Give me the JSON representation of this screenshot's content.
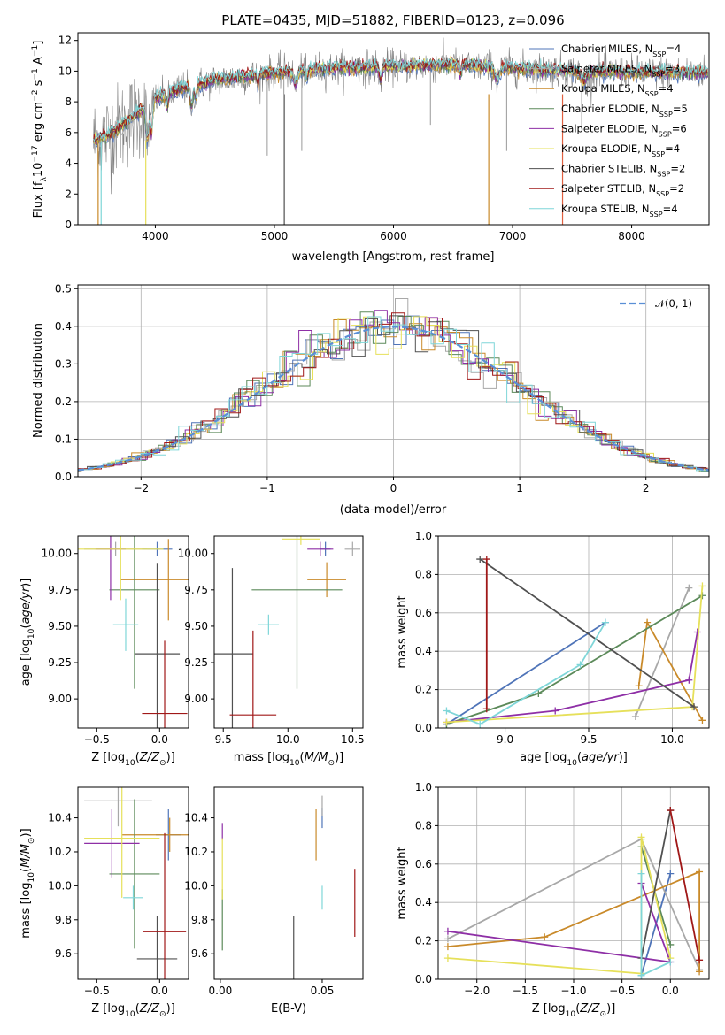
{
  "title": "PLATE=0435, MJD=51882, FIBERID=0123, z=0.096",
  "colors": {
    "Chabrier MILES": "#4f74b8",
    "Salpeter MILES": "#a8a8a8",
    "Kroupa MILES": "#c98a2a",
    "Chabrier ELODIE": "#5c8a5a",
    "Salpeter ELODIE": "#8e2fa6",
    "Kroupa ELODIE": "#e6e05a",
    "Chabrier STELIB": "#505050",
    "Salpeter STELIB": "#a01818",
    "Kroupa STELIB": "#7fd6d8"
  },
  "legend_spectrum": [
    {
      "label": "Chabrier MILES, N",
      "sub": "SSP",
      "tail": "=4",
      "color": "#4f74b8"
    },
    {
      "label": "Salpeter MILES, N",
      "sub": "SSP",
      "tail": "=3",
      "color": "#a8a8a8"
    },
    {
      "label": "Kroupa MILES, N",
      "sub": "SSP",
      "tail": "=4",
      "color": "#c98a2a"
    },
    {
      "label": "Chabrier ELODIE, N",
      "sub": "SSP",
      "tail": "=5",
      "color": "#5c8a5a"
    },
    {
      "label": "Salpeter ELODIE, N",
      "sub": "SSP",
      "tail": "=6",
      "color": "#8e2fa6"
    },
    {
      "label": "Kroupa ELODIE, N",
      "sub": "SSP",
      "tail": "=4",
      "color": "#e6e05a"
    },
    {
      "label": "Chabrier STELIB, N",
      "sub": "SSP",
      "tail": "=2",
      "color": "#505050"
    },
    {
      "label": "Salpeter STELIB, N",
      "sub": "SSP",
      "tail": "=2",
      "color": "#a01818"
    },
    {
      "label": "Kroupa STELIB, N",
      "sub": "SSP",
      "tail": "=4",
      "color": "#7fd6d8"
    }
  ],
  "chart_data": [
    {
      "id": "spectrum",
      "type": "line",
      "xlabel": "wavelength [Angstrom, rest frame]",
      "ylabel": "Flux [f_λ10^-17 erg cm^-2 s^-1 A^-1]",
      "xlim": [
        3350,
        8650
      ],
      "ylim": [
        0,
        12.5
      ],
      "xticks": [
        4000,
        5000,
        6000,
        7000,
        8000
      ],
      "yticks": [
        0,
        2,
        4,
        6,
        8,
        10,
        12
      ],
      "data_shape": {
        "wavelength": [
          3500,
          3600,
          3700,
          3800,
          3900,
          4000,
          4200,
          4500,
          5000,
          5500,
          6000,
          6500,
          7000,
          7500,
          8000,
          8500
        ],
        "flux": [
          5.5,
          5.8,
          6.3,
          6.9,
          7.5,
          8.2,
          8.8,
          9.4,
          9.9,
          10.2,
          10.3,
          10.4,
          10.2,
          10.0,
          9.9,
          9.9
        ]
      },
      "grid": false
    },
    {
      "id": "residuals",
      "type": "line",
      "xlabel": "(data-model)/error",
      "ylabel": "Normed distribution",
      "xlim": [
        -2.5,
        2.5
      ],
      "ylim": [
        0,
        0.51
      ],
      "xticks": [
        -2,
        -1,
        0,
        1,
        2
      ],
      "yticks": [
        0.0,
        0.1,
        0.2,
        0.3,
        0.4,
        0.5
      ],
      "series_name": "𝒩(0, 1)",
      "grid": true,
      "legend": "top-right"
    },
    {
      "id": "age_vs_Z",
      "type": "scatter",
      "xlabel": "Z [log10(Z/Z⊙)]",
      "ylabel": "age  [log10(age/yr)]",
      "xlim": [
        -0.65,
        0.23
      ],
      "ylim": [
        8.8,
        10.12
      ],
      "xticks": [
        -0.5,
        0.0
      ],
      "yticks": [
        9.0,
        9.25,
        9.5,
        9.75,
        10.0
      ],
      "points": [
        {
          "model": "Chabrier MILES",
          "x": -0.02,
          "y": 10.03,
          "xerr": 0.12,
          "yerr": 0.05
        },
        {
          "model": "Salpeter MILES",
          "x": -0.35,
          "y": 10.03,
          "xerr": 0.25,
          "yerr": 0.05
        },
        {
          "model": "Kroupa MILES",
          "x": 0.07,
          "y": 9.82,
          "xerr": 0.38,
          "yerr": 0.28
        },
        {
          "model": "Chabrier ELODIE",
          "x": -0.2,
          "y": 9.75,
          "xerr": 0.2,
          "yerr": 0.68
        },
        {
          "model": "Salpeter ELODIE",
          "x": -0.39,
          "y": 10.03,
          "xerr": 0.12,
          "yerr": 0.35
        },
        {
          "model": "Kroupa ELODIE",
          "x": -0.31,
          "y": 10.03,
          "xerr": 0.34,
          "yerr": 0.35
        },
        {
          "model": "Chabrier STELIB",
          "x": -0.02,
          "y": 9.31,
          "xerr": 0.18,
          "yerr": 0.62
        },
        {
          "model": "Salpeter STELIB",
          "x": 0.04,
          "y": 8.9,
          "xerr": 0.18,
          "yerr": 0.5
        },
        {
          "model": "Kroupa STELIB",
          "x": -0.27,
          "y": 9.51,
          "xerr": 0.1,
          "yerr": 0.18
        }
      ]
    },
    {
      "id": "age_vs_mass",
      "type": "scatter",
      "xlabel": "mass [log10(M/M⊙)]",
      "ylabel": "",
      "xlim": [
        9.43,
        10.58
      ],
      "ylim": [
        8.8,
        10.12
      ],
      "xticks": [
        9.5,
        10.0,
        10.5
      ],
      "yticks": [
        9.0,
        9.25,
        9.5,
        9.75,
        10.0
      ],
      "points": [
        {
          "model": "Chabrier MILES",
          "x": 10.29,
          "y": 10.03,
          "xerr": 0.04,
          "yerr": 0.05
        },
        {
          "model": "Salpeter MILES",
          "x": 10.5,
          "y": 10.03,
          "xerr": 0.06,
          "yerr": 0.05
        },
        {
          "model": "Kroupa MILES",
          "x": 10.3,
          "y": 9.82,
          "xerr": 0.15,
          "yerr": 0.12
        },
        {
          "model": "Chabrier ELODIE",
          "x": 10.07,
          "y": 9.75,
          "xerr": 0.35,
          "yerr": 0.68
        },
        {
          "model": "Salpeter ELODIE",
          "x": 10.25,
          "y": 10.03,
          "xerr": 0.1,
          "yerr": 0.05
        },
        {
          "model": "Kroupa ELODIE",
          "x": 10.1,
          "y": 10.1,
          "xerr": 0.15,
          "yerr": 0.04
        },
        {
          "model": "Chabrier STELIB",
          "x": 9.57,
          "y": 9.31,
          "xerr": 0.16,
          "yerr": 0.59
        },
        {
          "model": "Salpeter STELIB",
          "x": 9.73,
          "y": 8.89,
          "xerr": 0.18,
          "yerr": 0.58
        },
        {
          "model": "Kroupa STELIB",
          "x": 9.85,
          "y": 9.51,
          "xerr": 0.08,
          "yerr": 0.07
        }
      ]
    },
    {
      "id": "weight_vs_age",
      "type": "line",
      "xlabel": "age  [log10(age/yr)]",
      "ylabel": "mass weight",
      "xlim": [
        8.6,
        10.22
      ],
      "ylim": [
        0,
        1
      ],
      "xticks": [
        9.0,
        9.5,
        10.0
      ],
      "yticks": [
        0.0,
        0.2,
        0.4,
        0.6,
        0.8,
        1.0
      ],
      "grid": true,
      "series": [
        {
          "model": "Chabrier MILES",
          "x": [
            8.65,
            9.6
          ],
          "y": [
            0.02,
            0.55
          ]
        },
        {
          "model": "Salpeter MILES",
          "x": [
            9.78,
            10.1
          ],
          "y": [
            0.06,
            0.73
          ]
        },
        {
          "model": "Kroupa MILES",
          "x": [
            9.8,
            9.85,
            10.18
          ],
          "y": [
            0.22,
            0.55,
            0.04
          ]
        },
        {
          "model": "Chabrier ELODIE",
          "x": [
            8.65,
            9.2,
            10.18
          ],
          "y": [
            0.02,
            0.18,
            0.69
          ]
        },
        {
          "model": "Salpeter ELODIE",
          "x": [
            8.65,
            9.3,
            10.1,
            10.15
          ],
          "y": [
            0.03,
            0.09,
            0.25,
            0.5
          ]
        },
        {
          "model": "Kroupa ELODIE",
          "x": [
            8.65,
            10.12,
            10.18
          ],
          "y": [
            0.03,
            0.11,
            0.74
          ]
        },
        {
          "model": "Chabrier STELIB",
          "x": [
            8.85,
            10.13
          ],
          "y": [
            0.88,
            0.11
          ]
        },
        {
          "model": "Salpeter STELIB",
          "x": [
            8.89,
            8.89
          ],
          "y": [
            0.88,
            0.1
          ]
        },
        {
          "model": "Kroupa STELIB",
          "x": [
            8.65,
            8.85,
            9.45,
            9.6
          ],
          "y": [
            0.09,
            0.02,
            0.33,
            0.55
          ]
        }
      ]
    },
    {
      "id": "mass_vs_Z",
      "type": "scatter",
      "xlabel": "Z [log10(Z/Z⊙)]",
      "ylabel": "mass [log10(M/M⊙)]",
      "xlim": [
        -0.65,
        0.23
      ],
      "ylim": [
        9.45,
        10.58
      ],
      "xticks": [
        -0.5,
        0.0
      ],
      "yticks": [
        9.6,
        9.8,
        10.0,
        10.2,
        10.4
      ],
      "points": [
        {
          "model": "Chabrier MILES",
          "x": 0.07,
          "y": 10.3,
          "xerr": 0.1,
          "yerr": 0.15
        },
        {
          "model": "Salpeter MILES",
          "x": -0.33,
          "y": 10.5,
          "xerr": 0.27,
          "yerr": 0.15
        },
        {
          "model": "Kroupa MILES",
          "x": 0.08,
          "y": 10.3,
          "xerr": 0.38,
          "yerr": 0.1
        },
        {
          "model": "Chabrier ELODIE",
          "x": -0.2,
          "y": 10.07,
          "xerr": 0.2,
          "yerr": 0.44
        },
        {
          "model": "Salpeter ELODIE",
          "x": -0.38,
          "y": 10.25,
          "xerr": 0.22,
          "yerr": 0.2
        },
        {
          "model": "Kroupa ELODIE",
          "x": -0.3,
          "y": 10.28,
          "xerr": 0.3,
          "yerr": 0.35
        },
        {
          "model": "Chabrier STELIB",
          "x": -0.02,
          "y": 9.57,
          "xerr": 0.16,
          "yerr": 0.25
        },
        {
          "model": "Salpeter STELIB",
          "x": 0.04,
          "y": 9.73,
          "xerr": 0.17,
          "yerr": 0.58
        },
        {
          "model": "Kroupa STELIB",
          "x": -0.21,
          "y": 9.93,
          "xerr": 0.08,
          "yerr": 0.07
        }
      ]
    },
    {
      "id": "mass_vs_EBV",
      "type": "scatter",
      "xlabel": "E(B-V)",
      "ylabel": "",
      "xlim": [
        -0.003,
        0.07
      ],
      "ylim": [
        9.45,
        10.58
      ],
      "xticks": [
        0.0,
        0.05
      ],
      "yticks": [
        9.6,
        9.8,
        10.0,
        10.2,
        10.4
      ],
      "points": [
        {
          "model": "Chabrier MILES",
          "x": 0.05,
          "y": 10.4,
          "yerr": 0.06
        },
        {
          "model": "Salpeter MILES",
          "x": 0.05,
          "y": 10.47,
          "yerr": 0.06
        },
        {
          "model": "Kroupa MILES",
          "x": 0.047,
          "y": 10.3,
          "yerr": 0.15
        },
        {
          "model": "Chabrier ELODIE",
          "x": 0.001,
          "y": 9.8,
          "yerr": 0.18
        },
        {
          "model": "Salpeter ELODIE",
          "x": 0.001,
          "y": 10.32,
          "yerr": 0.05
        },
        {
          "model": "Kroupa ELODIE",
          "x": 0.001,
          "y": 10.1,
          "yerr": 0.18
        },
        {
          "model": "Chabrier STELIB",
          "x": 0.036,
          "y": 9.57,
          "yerr": 0.25
        },
        {
          "model": "Salpeter STELIB",
          "x": 0.066,
          "y": 9.9,
          "yerr": 0.2
        },
        {
          "model": "Kroupa STELIB",
          "x": 0.05,
          "y": 9.93,
          "yerr": 0.07
        }
      ]
    },
    {
      "id": "weight_vs_Z",
      "type": "line",
      "xlabel": "Z [log10(Z/Z⊙)]",
      "ylabel": "mass weight",
      "xlim": [
        -2.4,
        0.4
      ],
      "ylim": [
        0,
        1
      ],
      "xticks": [
        -2.0,
        -1.5,
        -1.0,
        -0.5,
        0.0
      ],
      "yticks": [
        0.0,
        0.2,
        0.4,
        0.6,
        0.8,
        1.0
      ],
      "grid": true,
      "series": [
        {
          "model": "Chabrier MILES",
          "x": [
            -0.3,
            0.0
          ],
          "y": [
            0.02,
            0.55
          ]
        },
        {
          "model": "Salpeter MILES",
          "x": [
            -2.3,
            -0.3,
            0.3
          ],
          "y": [
            0.21,
            0.73,
            0.05
          ]
        },
        {
          "model": "Kroupa MILES",
          "x": [
            -2.3,
            -1.3,
            0.3,
            0.3
          ],
          "y": [
            0.17,
            0.22,
            0.56,
            0.04
          ]
        },
        {
          "model": "Chabrier ELODIE",
          "x": [
            -0.3,
            0.0
          ],
          "y": [
            0.69,
            0.18
          ]
        },
        {
          "model": "Salpeter ELODIE",
          "x": [
            -2.3,
            0.0,
            -0.3
          ],
          "y": [
            0.25,
            0.09,
            0.5
          ]
        },
        {
          "model": "Kroupa ELODIE",
          "x": [
            -2.3,
            -0.3,
            -0.3,
            0.0
          ],
          "y": [
            0.11,
            0.03,
            0.74,
            0.11
          ]
        },
        {
          "model": "Chabrier STELIB",
          "x": [
            -0.3,
            0.0
          ],
          "y": [
            0.11,
            0.88
          ]
        },
        {
          "model": "Salpeter STELIB",
          "x": [
            0.0,
            0.3
          ],
          "y": [
            0.88,
            0.1
          ]
        },
        {
          "model": "Kroupa STELIB",
          "x": [
            -0.3,
            -0.3,
            0.0
          ],
          "y": [
            0.55,
            0.02,
            0.09
          ]
        }
      ]
    }
  ]
}
